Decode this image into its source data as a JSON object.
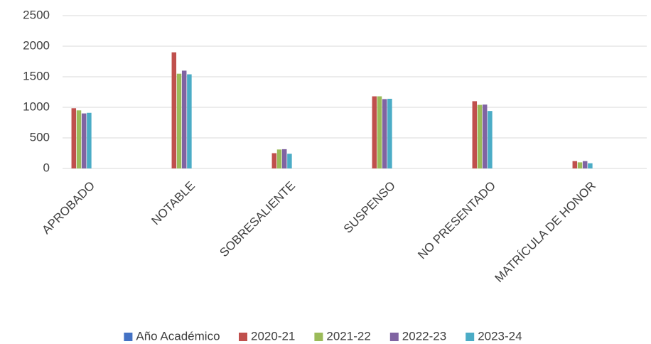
{
  "chart_data": {
    "type": "bar",
    "categories": [
      "APROBADO",
      "NOTABLE",
      "SOBRESALIENTE",
      "SUSPENSO",
      "NO PRESENTADO",
      "MATRÍCULA DE HONOR"
    ],
    "series": [
      {
        "name": "Año Académico",
        "color": "#4472c4",
        "values": [
          0,
          0,
          0,
          0,
          0,
          0
        ]
      },
      {
        "name": "2020-21",
        "color": "#c0504d",
        "values": [
          985,
          1900,
          250,
          1180,
          1100,
          120
        ]
      },
      {
        "name": "2021-22",
        "color": "#9bbb59",
        "values": [
          950,
          1550,
          310,
          1180,
          1040,
          100
        ]
      },
      {
        "name": "2022-23",
        "color": "#8064a2",
        "values": [
          900,
          1600,
          315,
          1135,
          1045,
          120
        ]
      },
      {
        "name": "2023-24",
        "color": "#4bacc6",
        "values": [
          910,
          1540,
          240,
          1140,
          940,
          85
        ]
      }
    ],
    "ylim": [
      0,
      2500
    ],
    "yticks": [
      0,
      500,
      1000,
      1500,
      2000,
      2500
    ],
    "grid": true,
    "legend": "bottom"
  }
}
